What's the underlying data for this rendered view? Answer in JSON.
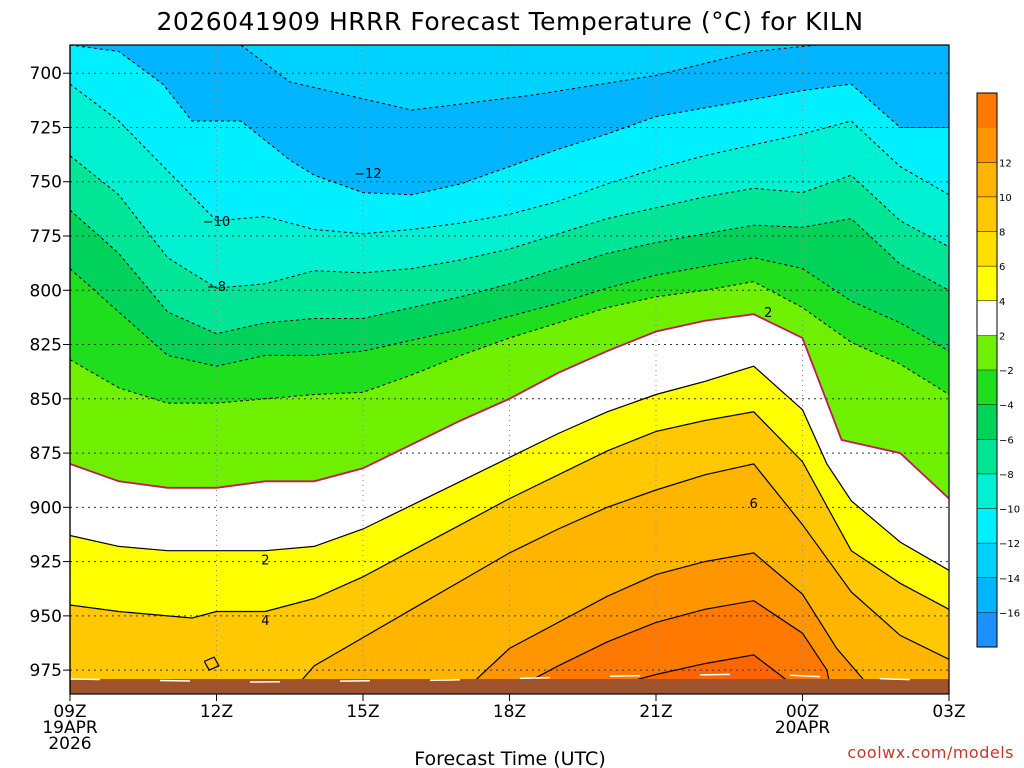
{
  "chart_data": {
    "type": "heatmap",
    "title": "2026041909 HRRR Forecast Temperature (°C) for KILN",
    "xlabel": "Forecast Time (UTC)",
    "ylabel": "",
    "credit": "coolwx.com/models",
    "x_ticks": [
      {
        "hour": 0,
        "lines": [
          "09Z",
          "19APR",
          "2026"
        ]
      },
      {
        "hour": 3,
        "lines": [
          "12Z"
        ]
      },
      {
        "hour": 6,
        "lines": [
          "15Z"
        ]
      },
      {
        "hour": 9,
        "lines": [
          "18Z"
        ]
      },
      {
        "hour": 12,
        "lines": [
          "21Z"
        ]
      },
      {
        "hour": 15,
        "lines": [
          "00Z",
          "20APR"
        ]
      },
      {
        "hour": 18,
        "lines": [
          "03Z"
        ]
      }
    ],
    "xlim": [
      0,
      18
    ],
    "y_ticks": [
      700,
      725,
      750,
      775,
      800,
      825,
      850,
      875,
      900,
      925,
      950,
      975
    ],
    "ylim": [
      687,
      986
    ],
    "contour_levels": [
      -16,
      -14,
      -12,
      -10,
      -8,
      -6,
      -4,
      -2,
      2,
      4,
      6,
      8,
      10,
      12
    ],
    "colorbar": {
      "colors": [
        "#1e90ff",
        "#00b4ff",
        "#00d2ff",
        "#00f0ff",
        "#00f0d2",
        "#00e696",
        "#00d25a",
        "#1ede1e",
        "#6ef000",
        "#ffffff",
        "#ffff00",
        "#ffe000",
        "#ffc800",
        "#ffb400",
        "#ff9600",
        "#ff7800"
      ],
      "labels": [
        -16,
        -14,
        -12,
        -10,
        -8,
        -6,
        -4,
        -2,
        2,
        4,
        6,
        8,
        10,
        12
      ]
    },
    "series": [
      {
        "name": "-14",
        "style": "dashed",
        "x": [
          3.5,
          4.5,
          7,
          9.5,
          12,
          14,
          15.3
        ],
        "y": [
          687,
          704,
          717,
          710,
          701,
          690,
          687
        ]
      },
      {
        "name": "-12",
        "style": "dashed",
        "x": [
          0,
          1,
          1.9,
          2.5,
          3.5,
          4.5,
          5,
          6,
          7,
          8,
          9,
          10,
          11,
          12,
          13,
          14,
          15,
          16,
          17,
          18
        ],
        "y": [
          687,
          690,
          705,
          722,
          722,
          740,
          747,
          755,
          756,
          751,
          743,
          735,
          728,
          720,
          716,
          712,
          708,
          705,
          725,
          725
        ]
      },
      {
        "name": "-10",
        "style": "dashed",
        "x": [
          0,
          1,
          2,
          3,
          4,
          5,
          6,
          7,
          8,
          9,
          10,
          11,
          12,
          13,
          14,
          15,
          16,
          17,
          18
        ],
        "y": [
          705,
          722,
          745,
          768,
          766,
          772,
          774,
          772,
          769,
          765,
          759,
          751,
          744,
          738,
          733,
          728,
          722,
          743,
          756
        ]
      },
      {
        "name": "-8",
        "style": "dashed",
        "x": [
          0,
          1,
          2,
          3,
          4,
          5,
          6,
          7,
          8,
          9,
          10,
          11,
          12,
          13,
          14,
          15,
          16,
          17,
          18
        ],
        "y": [
          738,
          756,
          785,
          799,
          797,
          791,
          792,
          790,
          786,
          781,
          774,
          767,
          762,
          757,
          753,
          755,
          747,
          768,
          780
        ]
      },
      {
        "name": "-6",
        "style": "dashed",
        "x": [
          0,
          1,
          2,
          3,
          4,
          5,
          6,
          7,
          8,
          9,
          10,
          11,
          12,
          13,
          14,
          15,
          16,
          17,
          18
        ],
        "y": [
          763,
          783,
          810,
          820,
          815,
          813,
          813,
          808,
          803,
          797,
          790,
          783,
          778,
          774,
          770,
          771,
          767,
          788,
          800
        ]
      },
      {
        "name": "-4",
        "style": "dashed",
        "x": [
          0,
          1,
          2,
          3,
          4,
          5,
          6,
          7,
          8,
          9,
          10,
          11,
          12,
          13,
          14,
          15,
          16,
          17,
          18
        ],
        "y": [
          790,
          810,
          830,
          835,
          830,
          830,
          828,
          823,
          818,
          812,
          806,
          799,
          793,
          789,
          785,
          790,
          805,
          815,
          828
        ]
      },
      {
        "name": "-2",
        "style": "dashed",
        "x": [
          0,
          1,
          2,
          3,
          4,
          5,
          6,
          7,
          8,
          9,
          10,
          11,
          12,
          13,
          14,
          15,
          16,
          17,
          18
        ],
        "y": [
          832,
          845,
          852,
          852,
          850,
          848,
          847,
          839,
          830,
          822,
          815,
          808,
          803,
          800,
          796,
          808,
          824,
          834,
          848
        ]
      },
      {
        "name": "0",
        "style": "solid-magenta",
        "x": [
          0,
          1,
          2,
          3,
          4,
          5,
          6,
          7,
          8,
          9,
          10,
          11,
          12,
          13,
          14,
          15,
          15.8,
          17,
          18
        ],
        "y": [
          880,
          888,
          891,
          891,
          888,
          888,
          882,
          871,
          860,
          850,
          838,
          828,
          819,
          814,
          811,
          822,
          869,
          875,
          896
        ]
      },
      {
        "name": "2",
        "style": "solid",
        "x": [
          0,
          1,
          2,
          3,
          4,
          5,
          6,
          7,
          8,
          9,
          10,
          11,
          12,
          13,
          14,
          15,
          15.5,
          16,
          17,
          18
        ],
        "y": [
          913,
          918,
          920,
          920,
          920,
          918,
          910,
          899,
          888,
          877,
          866,
          856,
          848,
          842,
          835,
          855,
          880,
          897,
          916,
          929
        ]
      },
      {
        "name": "4",
        "style": "solid",
        "x": [
          0,
          1,
          2,
          2.5,
          3,
          4,
          5,
          6,
          7,
          8,
          9,
          10,
          11,
          12,
          13,
          14,
          15,
          16,
          17,
          18
        ],
        "y": [
          945,
          948,
          950,
          951,
          948,
          948,
          942,
          932,
          920,
          908,
          896,
          885,
          874,
          865,
          860,
          856,
          879,
          920,
          935,
          947
        ]
      },
      {
        "name": "6",
        "style": "solid",
        "x": [
          4.5,
          5,
          6,
          7,
          8,
          9,
          10,
          11,
          12,
          13,
          14,
          15,
          16,
          17,
          18
        ],
        "y": [
          986,
          973,
          960,
          947,
          934,
          921,
          910,
          900,
          892,
          885,
          880,
          908,
          939,
          959,
          970
        ]
      },
      {
        "name": "8",
        "style": "solid",
        "x": [
          8,
          9,
          10,
          11,
          12,
          13,
          14,
          15,
          15.7,
          16.5,
          17,
          18
        ],
        "y": [
          986,
          965,
          953,
          941,
          931,
          925,
          921,
          940,
          965,
          986,
          986,
          986
        ]
      },
      {
        "name": "10",
        "style": "solid",
        "x": [
          8.5,
          9,
          10,
          11,
          12,
          13,
          14,
          15,
          15.5,
          15.6,
          16.5
        ],
        "y": [
          986,
          985,
          973,
          962,
          953,
          947,
          943,
          958,
          975,
          986,
          986
        ]
      },
      {
        "name": "12",
        "style": "solid",
        "x": [
          10,
          11,
          12,
          13,
          14,
          14.7,
          15
        ],
        "y": [
          986,
          983,
          977,
          972,
          968,
          980,
          986
        ]
      },
      {
        "name": "4-pocket",
        "style": "solid",
        "x": [
          2.75,
          2.95,
          3.05,
          2.85,
          2.75
        ],
        "y": [
          971,
          969,
          973,
          975,
          971
        ]
      }
    ],
    "contour_labels": [
      {
        "text": "−12",
        "x": 6.1,
        "y": 746
      },
      {
        "text": "−10",
        "x": 3.0,
        "y": 768
      },
      {
        "text": "−8",
        "x": 3.0,
        "y": 798
      },
      {
        "text": "2",
        "x": 14.3,
        "y": 810
      },
      {
        "text": "2",
        "x": 4.0,
        "y": 924
      },
      {
        "text": "4",
        "x": 4.0,
        "y": 952
      },
      {
        "text": "6",
        "x": 14.0,
        "y": 898
      }
    ]
  }
}
